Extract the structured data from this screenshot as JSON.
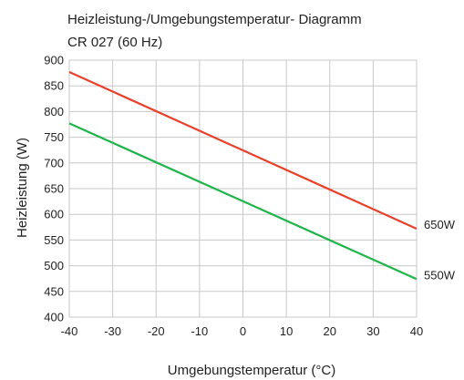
{
  "chart_data": {
    "type": "line",
    "title": "Heizleistung-/Umgebungstemperatur- Diagramm",
    "subtitle": "CR 027 (60 Hz)",
    "xlabel": "Umgebungstemperatur (°C)",
    "ylabel": "Heizleistung (W)",
    "xlim": [
      -40,
      40
    ],
    "ylim": [
      400,
      900
    ],
    "x_ticks": [
      -40,
      -30,
      -20,
      -10,
      0,
      10,
      20,
      30,
      40
    ],
    "y_ticks": [
      400,
      450,
      500,
      550,
      600,
      650,
      700,
      750,
      800,
      850,
      900
    ],
    "grid": true,
    "series": [
      {
        "name": "650W",
        "color": "#e8402a",
        "x": [
          -40,
          40
        ],
        "y": [
          877,
          572
        ]
      },
      {
        "name": "550W",
        "color": "#1db54a",
        "x": [
          -40,
          40
        ],
        "y": [
          777,
          474
        ]
      }
    ]
  }
}
